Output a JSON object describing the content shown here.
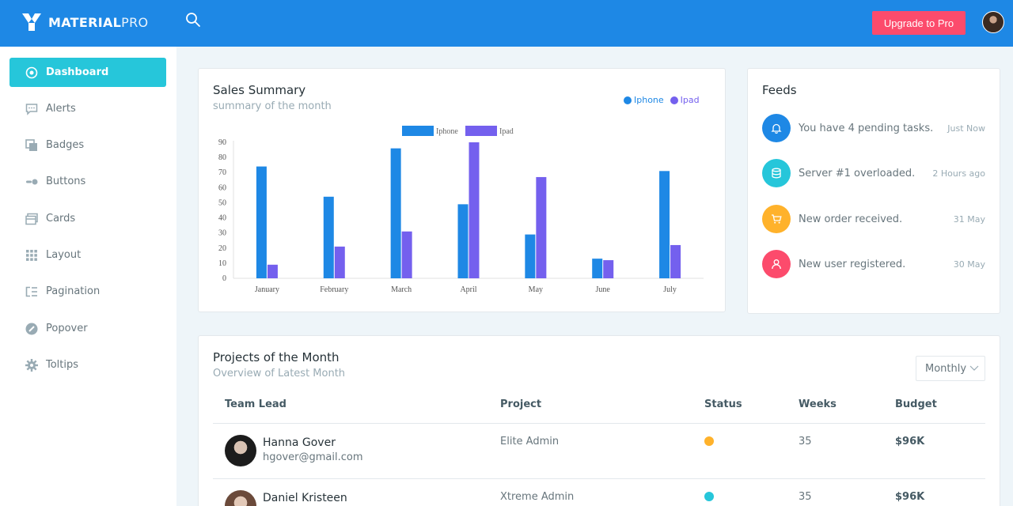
{
  "topbar": {
    "logo_bold": "MATERIAL",
    "logo_light": "PRO",
    "upgrade_label": "Upgrade to Pro",
    "brand_color": "#1e88e5"
  },
  "sidebar": {
    "items": [
      {
        "label": "Dashboard",
        "icon": "circle-dot-icon",
        "active": true
      },
      {
        "label": "Alerts",
        "icon": "message-icon"
      },
      {
        "label": "Badges",
        "icon": "badge-squares-icon"
      },
      {
        "label": "Buttons",
        "icon": "toggle-icon"
      },
      {
        "label": "Cards",
        "icon": "cards-icon"
      },
      {
        "label": "Layout",
        "icon": "grid-icon"
      },
      {
        "label": "Pagination",
        "icon": "list-icon"
      },
      {
        "label": "Popover",
        "icon": "edit-circle-icon"
      },
      {
        "label": "Toltips",
        "icon": "gear-icon"
      }
    ]
  },
  "sales": {
    "title": "Sales Summary",
    "subtitle": "summary of the month",
    "legend": [
      "Iphone",
      "Ipad"
    ]
  },
  "chart_data": {
    "type": "bar",
    "categories": [
      "January",
      "February",
      "March",
      "April",
      "May",
      "June",
      "July"
    ],
    "series": [
      {
        "name": "Iphone",
        "values": [
          74,
          54,
          86,
          49,
          29,
          13,
          71
        ],
        "color": "#1e88e5"
      },
      {
        "name": "Ipad",
        "values": [
          9,
          21,
          31,
          90,
          67,
          12,
          22
        ],
        "color": "#7460ee"
      }
    ],
    "yticks": [
      0,
      10,
      20,
      30,
      40,
      50,
      60,
      70,
      80,
      90
    ],
    "ylim": [
      0,
      90
    ],
    "legend": "top-center",
    "grid": false
  },
  "feeds": {
    "title": "Feeds",
    "items": [
      {
        "text": "You have 4 pending tasks.",
        "time": "Just Now",
        "color": "#1e88e5",
        "icon": "bell-icon"
      },
      {
        "text": "Server #1 overloaded.",
        "time": "2 Hours ago",
        "color": "#26c6da",
        "icon": "database-icon"
      },
      {
        "text": "New order received.",
        "time": "31 May",
        "color": "#ffb22b",
        "icon": "cart-icon"
      },
      {
        "text": "New user registered.",
        "time": "30 May",
        "color": "#fc4b6c",
        "icon": "user-icon"
      }
    ]
  },
  "projects": {
    "title": "Projects of the Month",
    "subtitle": "Overview of Latest Month",
    "filter_value": "Monthly",
    "headers": [
      "Team Lead",
      "Project",
      "Status",
      "Weeks",
      "Budget"
    ],
    "rows": [
      {
        "name": "Hanna Gover",
        "email": "hgover@gmail.com",
        "project": "Elite Admin",
        "status_color": "#ffb22b",
        "weeks": "35",
        "budget": "$96K"
      },
      {
        "name": "Daniel Kristeen",
        "email": "",
        "project": "Xtreme Admin",
        "status_color": "#26c6da",
        "weeks": "35",
        "budget": "$96K"
      }
    ]
  }
}
